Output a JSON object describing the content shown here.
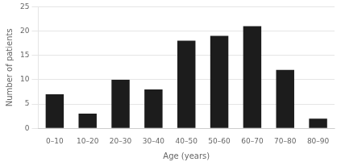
{
  "chart_data": {
    "type": "bar",
    "categories": [
      "0–10",
      "10–20",
      "20–30",
      "30–40",
      "40–50",
      "50–60",
      "60–70",
      "70–80",
      "80–90"
    ],
    "values": [
      7,
      3,
      10,
      8,
      18,
      19,
      21,
      12,
      2
    ],
    "color": "#1c1c1c",
    "xlabel": "Age (years)",
    "ylabel": "Number of patients",
    "ylim": [
      0,
      25
    ],
    "yticks": [
      0,
      5,
      10,
      15,
      20,
      25
    ],
    "grid": true
  }
}
